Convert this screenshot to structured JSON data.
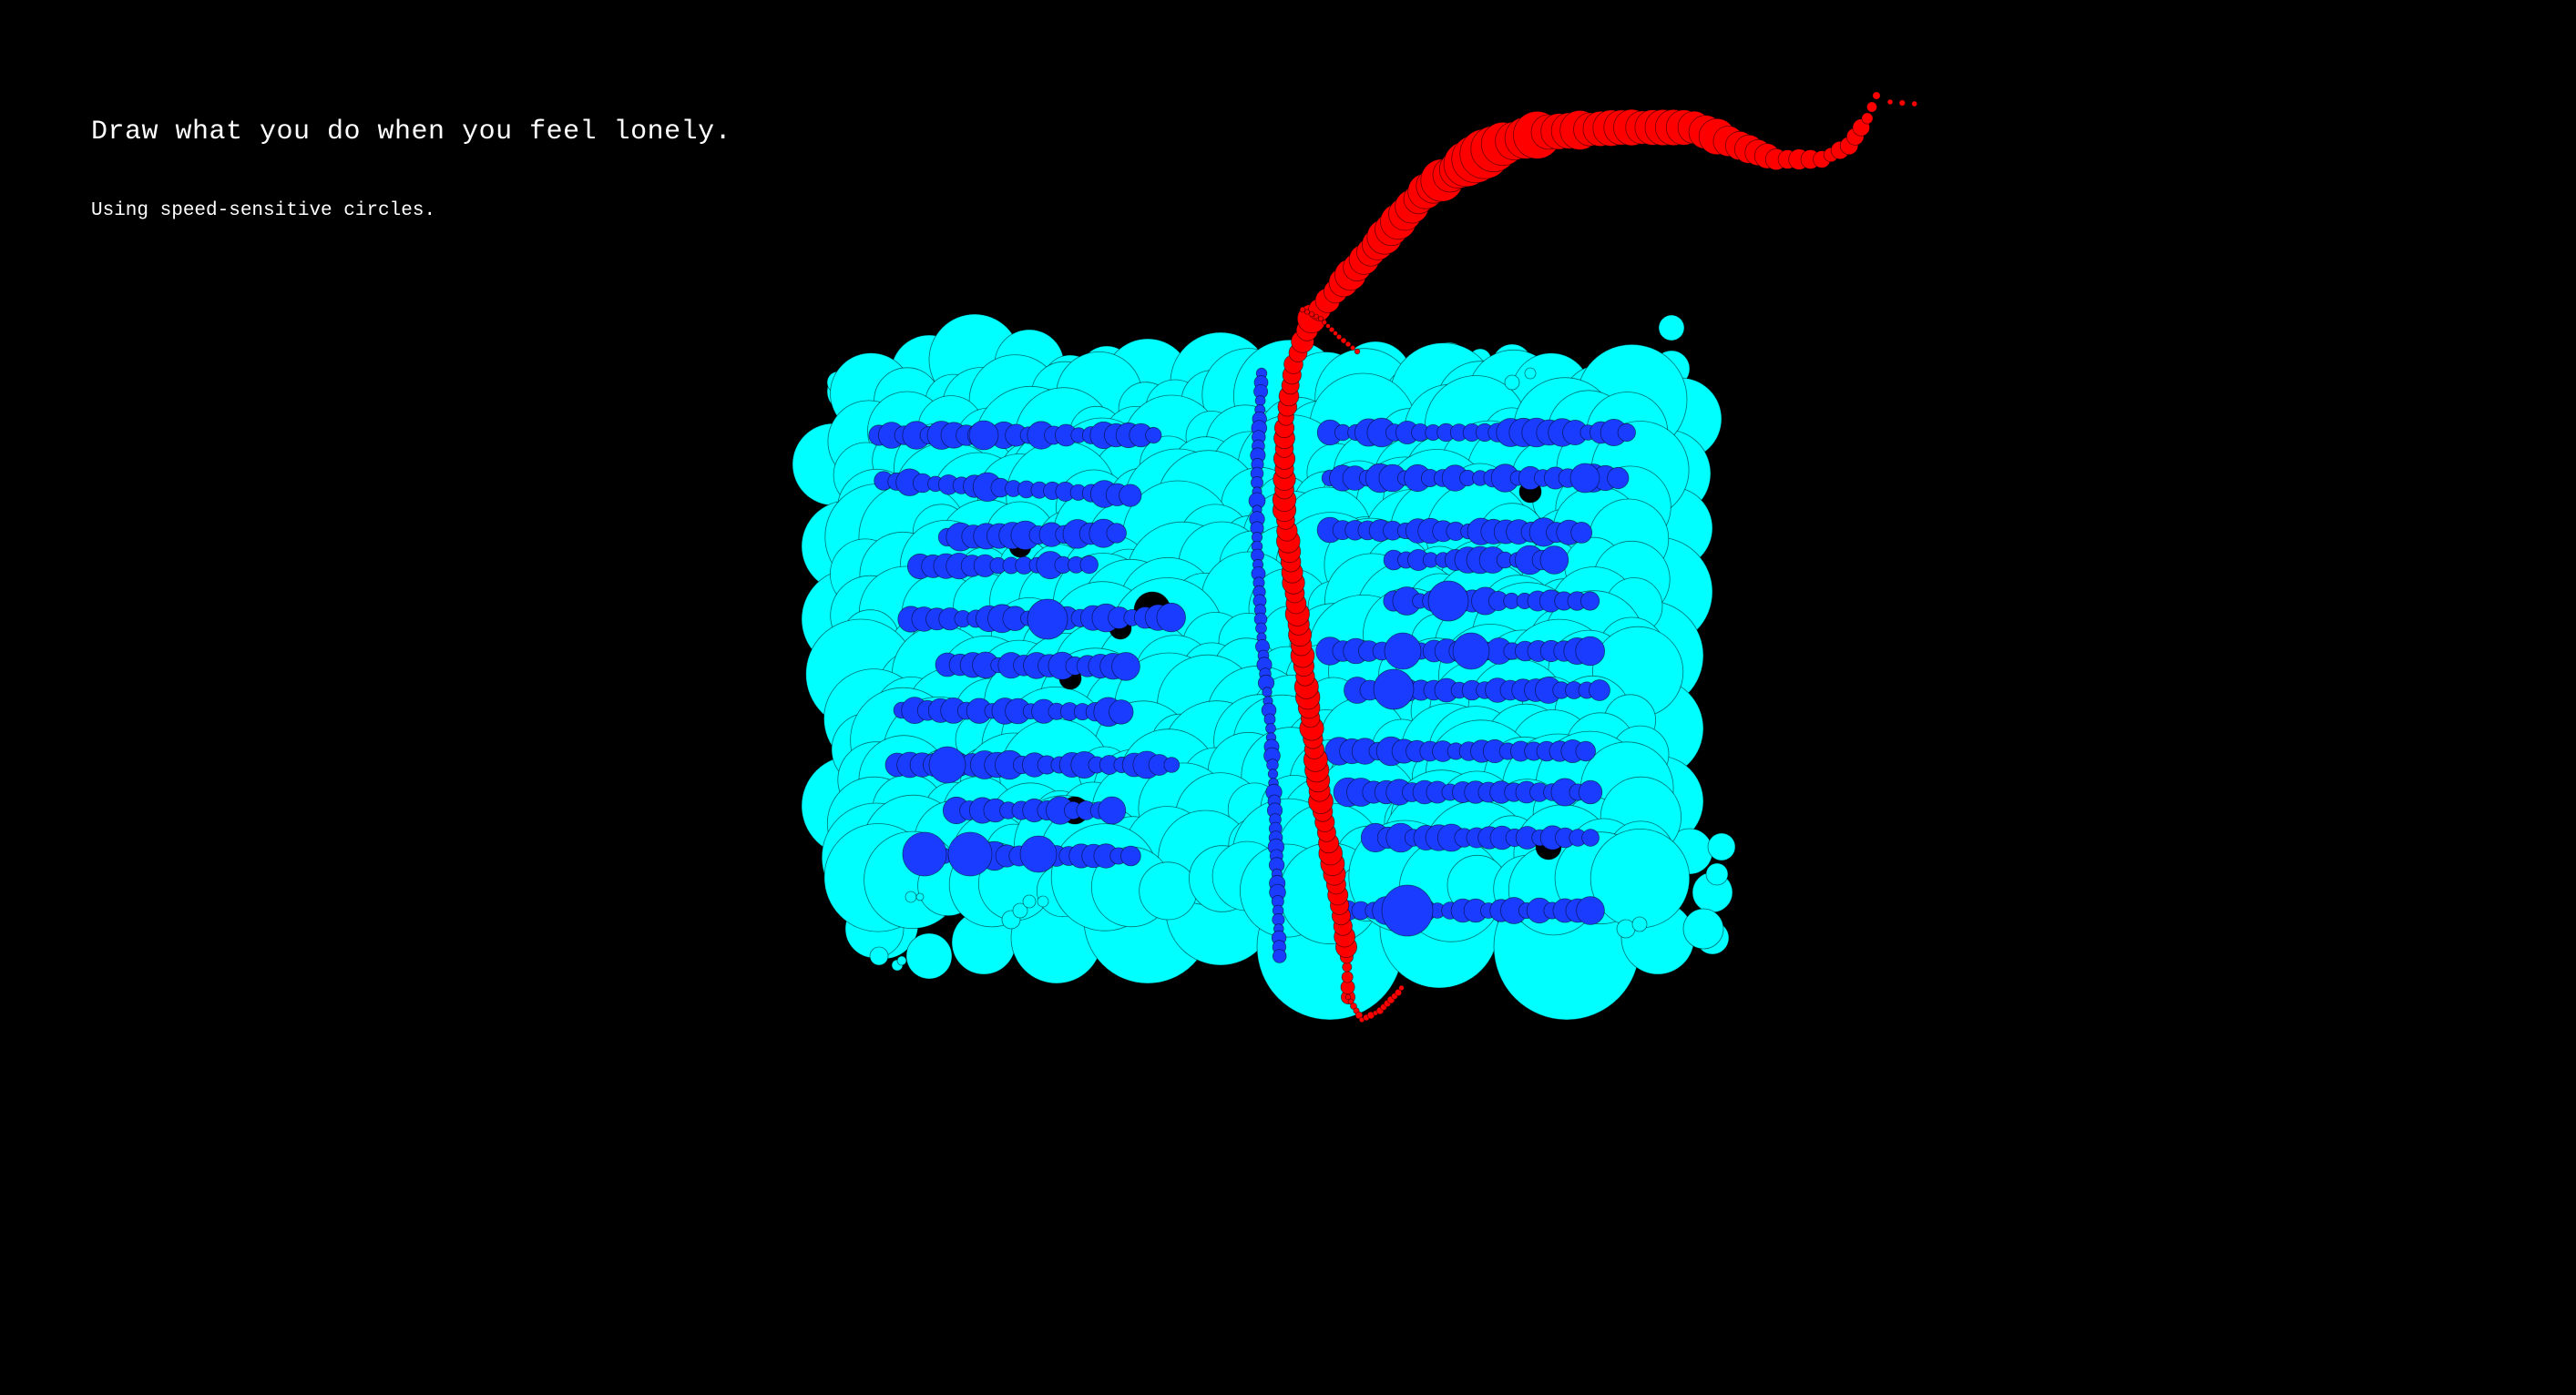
{
  "prompt": {
    "title": "Draw what you do when you feel lonely.",
    "subtitle": "Using speed-sensitive circles."
  },
  "canvas": {
    "background_color": "#000000",
    "brush_colors": {
      "fill": "#00ffff",
      "lines": "#1a3cff",
      "stroke": "#ff0000"
    }
  }
}
